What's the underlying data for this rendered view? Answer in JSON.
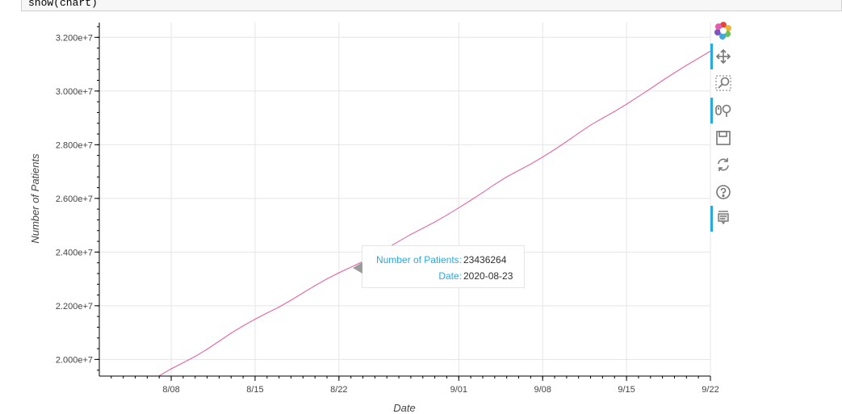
{
  "code_cell": {
    "text": "show(chart)"
  },
  "chart_data": {
    "type": "line",
    "title": "",
    "xlabel": "Date",
    "ylabel": "Number of Patients",
    "x_tick_labels": [
      "8/08",
      "8/15",
      "8/22",
      "9/01",
      "9/08",
      "9/15",
      "9/22"
    ],
    "x_ticks": [
      "2020-08-08",
      "2020-08-15",
      "2020-08-22",
      "2020-09-01",
      "2020-09-08",
      "2020-09-15",
      "2020-09-22"
    ],
    "y_tick_labels": [
      "2.000e+7",
      "2.200e+7",
      "2.400e+7",
      "2.600e+7",
      "2.800e+7",
      "3.000e+7",
      "3.200e+7"
    ],
    "y_ticks": [
      20000000,
      22000000,
      24000000,
      26000000,
      28000000,
      30000000,
      32000000
    ],
    "xlim": [
      "2020-08-02",
      "2020-09-22"
    ],
    "ylim": [
      19380000,
      32550000
    ],
    "grid": true,
    "line_color": "#e6549b",
    "series": [
      {
        "x": [
          "2020-08-07",
          "2020-08-08",
          "2020-08-09",
          "2020-08-10",
          "2020-08-11",
          "2020-08-12",
          "2020-08-13",
          "2020-08-14",
          "2020-08-15",
          "2020-08-16",
          "2020-08-17",
          "2020-08-18",
          "2020-08-19",
          "2020-08-20",
          "2020-08-21",
          "2020-08-22",
          "2020-08-23",
          "2020-08-24",
          "2020-08-25",
          "2020-08-26",
          "2020-08-27",
          "2020-08-28",
          "2020-08-29",
          "2020-08-30",
          "2020-08-31",
          "2020-09-01",
          "2020-09-02",
          "2020-09-03",
          "2020-09-04",
          "2020-09-05",
          "2020-09-06",
          "2020-09-07",
          "2020-09-08",
          "2020-09-09",
          "2020-09-10",
          "2020-09-11",
          "2020-09-12",
          "2020-09-13",
          "2020-09-14",
          "2020-09-15",
          "2020-09-16",
          "2020-09-17",
          "2020-09-18",
          "2020-09-19",
          "2020-09-20",
          "2020-09-21",
          "2020-09-22"
        ],
        "y": [
          19390000,
          19650000,
          19880000,
          20110000,
          20380000,
          20680000,
          20980000,
          21250000,
          21500000,
          21730000,
          21950000,
          22210000,
          22480000,
          22750000,
          23000000,
          23230000,
          23436264,
          23650000,
          23890000,
          24140000,
          24400000,
          24660000,
          24890000,
          25120000,
          25380000,
          25650000,
          25930000,
          26220000,
          26520000,
          26800000,
          27040000,
          27280000,
          27540000,
          27820000,
          28120000,
          28430000,
          28730000,
          28990000,
          29240000,
          29510000,
          29800000,
          30090000,
          30390000,
          30680000,
          30960000,
          31220000,
          31490000
        ]
      }
    ]
  },
  "tooltip": {
    "label_1": "Number of Patients:",
    "value_1": "23436264",
    "label_2": "Date:",
    "value_2": "2020-08-23"
  },
  "toolbar": {
    "tools": [
      "bokeh-logo-icon",
      "pan-icon",
      "box-zoom-icon",
      "wheel-zoom-icon",
      "save-icon",
      "reset-icon",
      "help-icon",
      "hover-icon"
    ],
    "accent_color": "#26aae1"
  }
}
